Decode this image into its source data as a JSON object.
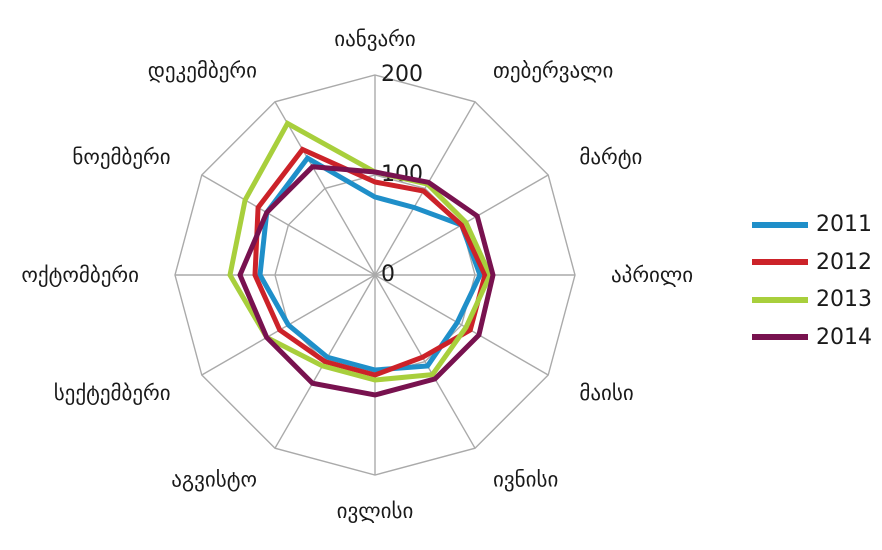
{
  "chart_data": {
    "type": "radar",
    "categories": [
      "იანვარი",
      "თებერვალი",
      "მარტი",
      "აპრილი",
      "მაისი",
      "ივნისი",
      "ივლისი",
      "აგვისტო",
      "სექტემბერი",
      "ოქტომბერი",
      "ნოემბერი",
      "დეკემბერი"
    ],
    "rlim": [
      0,
      200
    ],
    "ticks": [
      "0",
      "100",
      "200"
    ],
    "tick_values": [
      0,
      100,
      200
    ],
    "grid": true,
    "legend_position": "right",
    "series": [
      {
        "name": "2011",
        "color": "#1f8fc9",
        "values": [
          78,
          78,
          100,
          105,
          95,
          105,
          95,
          95,
          100,
          115,
          125,
          135
        ]
      },
      {
        "name": "2012",
        "color": "#cc2229",
        "values": [
          93,
          97,
          100,
          110,
          110,
          95,
          100,
          100,
          110,
          120,
          135,
          145
        ]
      },
      {
        "name": "2013",
        "color": "#a8cf3c",
        "values": [
          103,
          105,
          105,
          115,
          105,
          115,
          105,
          105,
          125,
          145,
          150,
          175
        ]
      },
      {
        "name": "2014",
        "color": "#78124f",
        "values": [
          103,
          107,
          118,
          118,
          120,
          120,
          120,
          125,
          125,
          135,
          125,
          125
        ]
      }
    ]
  }
}
